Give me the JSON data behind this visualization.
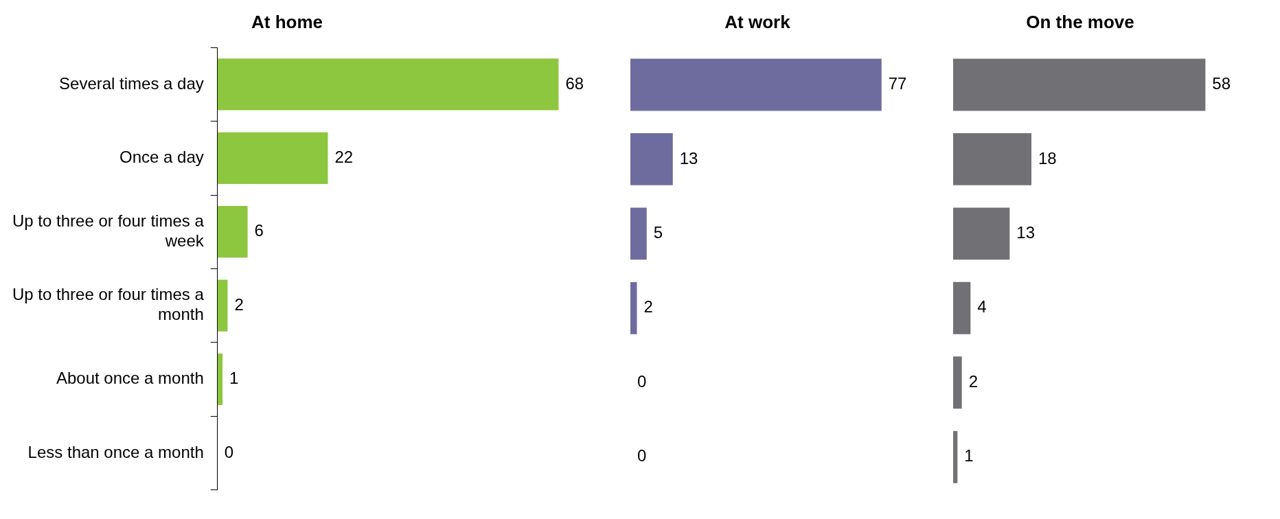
{
  "chart_data": [
    {
      "type": "bar",
      "orientation": "horizontal",
      "title": "At home",
      "categories": [
        "Several times a day",
        "Once a day",
        "Up to three or four times a week",
        "Up to three or four times a month",
        "About once a month",
        "Less than once a month"
      ],
      "values": [
        68,
        22,
        6,
        2,
        1,
        0
      ],
      "color": "#8dc63f",
      "data_labels": true,
      "tick_labels": "y"
    },
    {
      "type": "bar",
      "orientation": "horizontal",
      "title": "At work",
      "categories": [
        null,
        null,
        null,
        null,
        null,
        null
      ],
      "values": [
        77,
        13,
        5,
        2,
        0,
        0
      ],
      "color": "#6e6c9e",
      "data_labels": true,
      "tick_labels": false
    },
    {
      "type": "bar",
      "orientation": "horizontal",
      "title": "On the move",
      "categories": [
        null,
        null,
        null,
        null,
        null,
        null
      ],
      "values": [
        58,
        18,
        13,
        4,
        2,
        1
      ],
      "color": "#717074",
      "data_labels": true,
      "tick_labels": false
    }
  ]
}
